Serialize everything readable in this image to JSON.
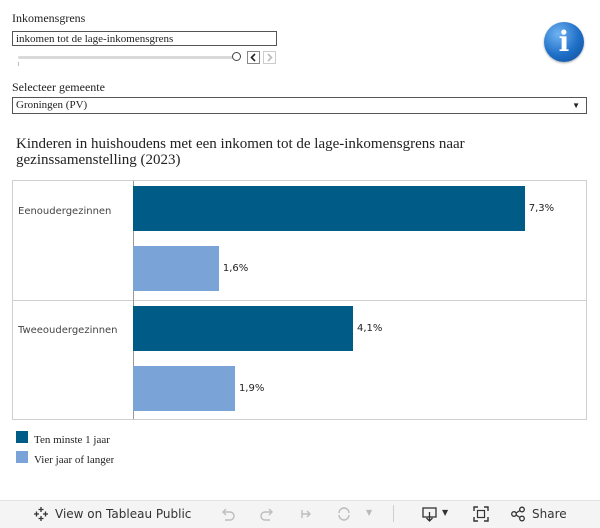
{
  "filter": {
    "label": "Inkomensgrens",
    "value": "inkomen tot de lage-inkomensgrens"
  },
  "municipality": {
    "label": "Selecteer gemeente",
    "value": "Groningen (PV)"
  },
  "colors": {
    "series1": "#005c87",
    "series2": "#7aa3d8"
  },
  "chart_data": {
    "type": "bar",
    "orientation": "horizontal",
    "title": "Kinderen in huishoudens met een inkomen tot de lage-inkomensgrens naar gezinssamenstelling (2023)",
    "categories": [
      "Eenoudergezinnen",
      "Tweeoudergezinnen"
    ],
    "series": [
      {
        "name": "Ten minste 1 jaar",
        "values": [
          7.3,
          4.1
        ],
        "labels": [
          "7,3%",
          "4,1%"
        ]
      },
      {
        "name": "Vier jaar of langer",
        "values": [
          1.6,
          1.9
        ],
        "labels": [
          "1,6%",
          "1,9%"
        ]
      }
    ],
    "xlim": [
      0,
      8.2
    ],
    "grid": false,
    "legend": "bottom-left"
  },
  "toolbar": {
    "view_label": "View on Tableau Public",
    "share_label": "Share"
  },
  "icons": {
    "info": "info-icon",
    "view": "tableau-logo-icon",
    "undo": "undo-icon",
    "redo": "redo-icon",
    "revert": "revert-icon",
    "refresh": "refresh-icon",
    "download": "download-icon",
    "fullscreen": "fullscreen-icon",
    "share": "share-icon"
  }
}
